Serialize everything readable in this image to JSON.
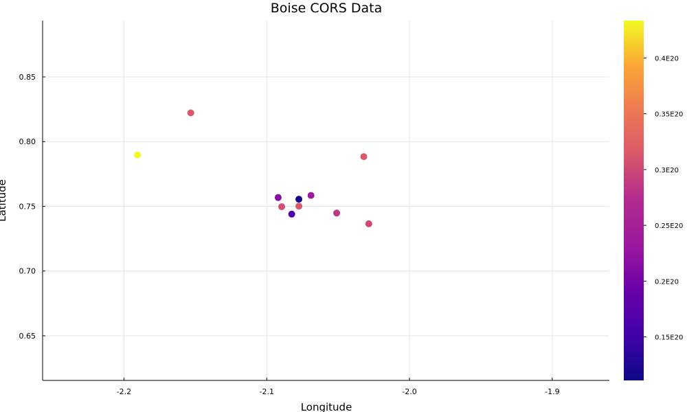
{
  "chart_data": {
    "type": "scatter",
    "title": "Boise CORS Data",
    "xlabel": "Longitude",
    "ylabel": "Latitude",
    "xlim": [
      -2.257,
      -1.86
    ],
    "ylim": [
      0.6155,
      0.8935
    ],
    "x_ticks": [
      {
        "value": -2.2,
        "label": "-2.2"
      },
      {
        "value": -2.1,
        "label": "-2.1"
      },
      {
        "value": -2.0,
        "label": "-2.0"
      },
      {
        "value": -1.9,
        "label": "-1.9"
      }
    ],
    "y_ticks": [
      {
        "value": 0.65,
        "label": "0.65"
      },
      {
        "value": 0.7,
        "label": "0.70"
      },
      {
        "value": 0.75,
        "label": "0.75"
      },
      {
        "value": 0.8,
        "label": "0.80"
      },
      {
        "value": 0.85,
        "label": "0.85"
      }
    ],
    "grid": true,
    "colorbar": {
      "colormap": "plasma",
      "range": [
        1.11e+19,
        4.335e+19
      ],
      "ticks": [
        {
          "value": 1.5e+19,
          "label": "0.15E20"
        },
        {
          "value": 2e+19,
          "label": "0.2E20"
        },
        {
          "value": 2.5e+19,
          "label": "0.25E20"
        },
        {
          "value": 3e+19,
          "label": "0.3E20"
        },
        {
          "value": 3.5e+19,
          "label": "0.35E20"
        },
        {
          "value": 4e+19,
          "label": "0.4E20"
        }
      ]
    },
    "points": [
      {
        "x": -2.1905,
        "y": 0.7897,
        "c": 4.33e+19
      },
      {
        "x": -2.1532,
        "y": 0.8222,
        "c": 3.15e+19
      },
      {
        "x": -2.032,
        "y": 0.7884,
        "c": 3.15e+19
      },
      {
        "x": -2.092,
        "y": 0.7568,
        "c": 2.15e+19
      },
      {
        "x": -2.0895,
        "y": 0.7497,
        "c": 3.05e+19
      },
      {
        "x": -2.0825,
        "y": 0.744,
        "c": 1.6e+19
      },
      {
        "x": -2.0775,
        "y": 0.7555,
        "c": 1.15e+19
      },
      {
        "x": -2.0775,
        "y": 0.7501,
        "c": 3.15e+19
      },
      {
        "x": -2.069,
        "y": 0.7584,
        "c": 2.35e+19
      },
      {
        "x": -2.051,
        "y": 0.7448,
        "c": 2.85e+19
      },
      {
        "x": -2.0285,
        "y": 0.7365,
        "c": 3e+19
      }
    ]
  },
  "colors": {
    "axis": "#000000",
    "grid": "#e6e6e6",
    "background": "#ffffff"
  }
}
